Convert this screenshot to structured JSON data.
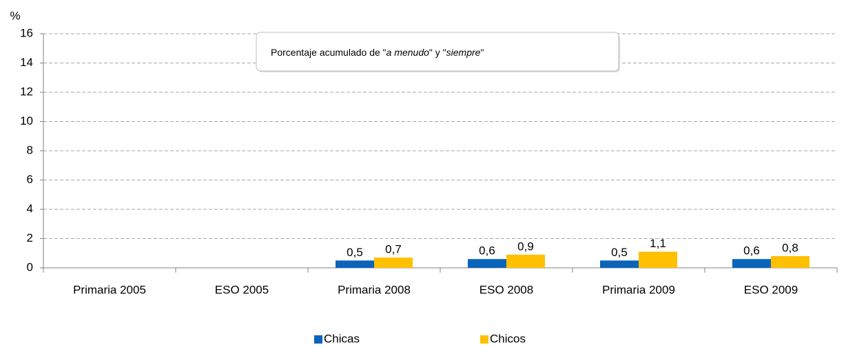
{
  "chart_data": {
    "type": "bar",
    "y_axis_label": "%",
    "annotation": [
      "Porcentaje acumulado de \"",
      "a menudo",
      "\" y \"",
      "siempre",
      "\""
    ],
    "categories": [
      "Primaria 2005",
      "ESO 2005",
      "Primaria 2008",
      "ESO 2008",
      "Primaria 2009",
      "ESO 2009"
    ],
    "series": [
      {
        "name": "Chicas",
        "color": "#0a64b9",
        "values": [
          null,
          null,
          0.5,
          0.6,
          0.5,
          0.6
        ],
        "value_labels": [
          null,
          null,
          "0,5",
          "0,6",
          "0,5",
          "0,6"
        ]
      },
      {
        "name": "Chicos",
        "color": "#ffc000",
        "values": [
          null,
          null,
          0.7,
          0.9,
          1.1,
          0.8
        ],
        "value_labels": [
          null,
          null,
          "0,7",
          "0,9",
          "1,1",
          "0,8"
        ]
      }
    ],
    "ylim": [
      0,
      16
    ],
    "yticks": [
      0,
      2,
      4,
      6,
      8,
      10,
      12,
      14,
      16
    ],
    "grid": true,
    "legend": "bottom"
  }
}
